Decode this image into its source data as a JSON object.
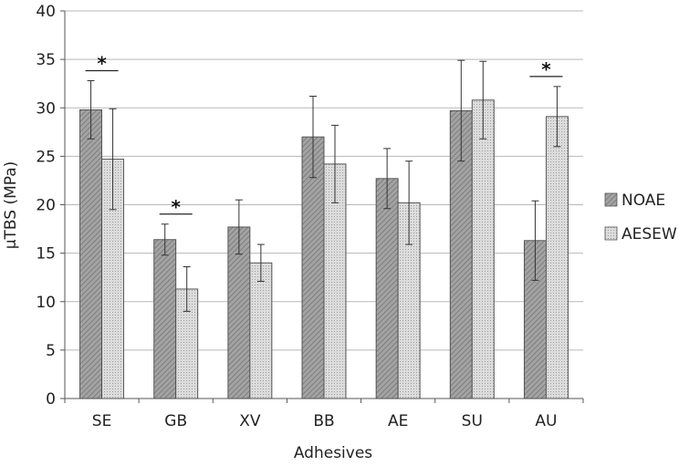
{
  "chart_data": {
    "type": "bar",
    "categories": [
      "SE",
      "GB",
      "XV",
      "BB",
      "AE",
      "SU",
      "AU"
    ],
    "xlabel": "Adhesives",
    "ylabel": "μTBS (MPa)",
    "ylim": [
      0,
      40
    ],
    "y_ticks": [
      "0",
      "5",
      "10",
      "15",
      "20",
      "25",
      "30",
      "35",
      "40"
    ],
    "grid": "horizontal",
    "legend_position": "right",
    "series": [
      {
        "name": "NOAE",
        "values": [
          29.8,
          16.4,
          17.7,
          27.0,
          22.7,
          29.7,
          16.3
        ],
        "error": [
          3.0,
          1.6,
          2.8,
          4.2,
          3.1,
          5.2,
          4.1
        ],
        "color": "#9a9a9a",
        "pattern": "diagonal-hatch"
      },
      {
        "name": "AESEW",
        "values": [
          24.7,
          11.3,
          14.0,
          24.2,
          20.2,
          30.8,
          29.1
        ],
        "error": [
          5.2,
          2.3,
          1.9,
          4.0,
          4.3,
          4.0,
          3.1
        ],
        "color": "#d0d0d0",
        "pattern": "fine-dots"
      }
    ],
    "significance": [
      {
        "category": "SE",
        "marker": "*"
      },
      {
        "category": "GB",
        "marker": "*"
      },
      {
        "category": "AU",
        "marker": "*"
      }
    ]
  }
}
